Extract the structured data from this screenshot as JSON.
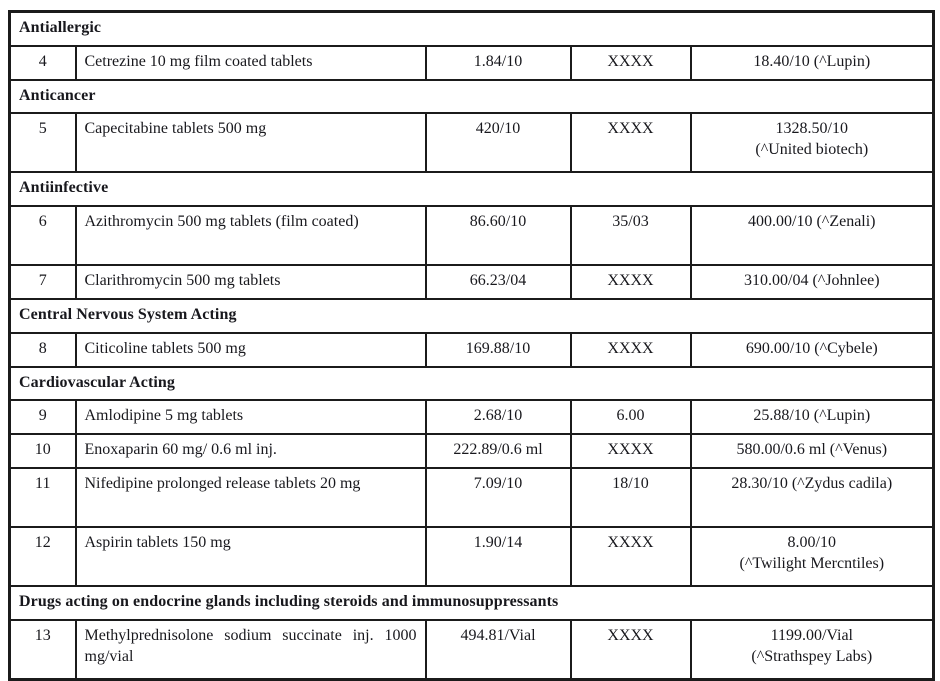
{
  "accent_colors": {
    "border": "#1b1b1b",
    "text": "#18181d",
    "background": "#ffffff"
  },
  "table": {
    "sections": [
      {
        "title": "Antiallergic",
        "rows": [
          {
            "sn": "4",
            "item": "Cetrezine 10 mg film coated tablets",
            "price_a": "1.84/10",
            "price_b": "XXXX",
            "price_c": [
              "18.40/10 (^Lupin)"
            ],
            "tall": false
          }
        ]
      },
      {
        "title": "Anticancer",
        "rows": [
          {
            "sn": "5",
            "item": "Capecitabine tablets 500 mg",
            "price_a": "420/10",
            "price_b": "XXXX",
            "price_c": [
              "1328.50/10",
              "(^United biotech)"
            ],
            "tall": true
          }
        ]
      },
      {
        "title": "Antiinfective",
        "rows": [
          {
            "sn": "6",
            "item": "Azithromycin 500 mg tablets (film coated)",
            "price_a": "86.60/10",
            "price_b": "35/03",
            "price_c": [
              "400.00/10 (^Zenali)"
            ],
            "tall": true
          },
          {
            "sn": "7",
            "item": "Clarithromycin 500 mg tablets",
            "price_a": "66.23/04",
            "price_b": "XXXX",
            "price_c": [
              "310.00/04 (^Johnlee)"
            ],
            "tall": false
          }
        ]
      },
      {
        "title": "Central Nervous System Acting",
        "rows": [
          {
            "sn": "8",
            "item": "Citicoline tablets 500 mg",
            "price_a": "169.88/10",
            "price_b": "XXXX",
            "price_c": [
              "690.00/10 (^Cybele)"
            ],
            "tall": false
          }
        ]
      },
      {
        "title": "Cardiovascular Acting",
        "rows": [
          {
            "sn": "9",
            "item": "Amlodipine 5 mg tablets",
            "price_a": "2.68/10",
            "price_b": "6.00",
            "price_c": [
              "25.88/10 (^Lupin)"
            ],
            "tall": false
          },
          {
            "sn": "10",
            "item": "Enoxaparin 60 mg/ 0.6 ml inj.",
            "price_a": "222.89/0.6 ml",
            "price_b": "XXXX",
            "price_c": [
              "580.00/0.6 ml (^Venus)"
            ],
            "tall": false
          },
          {
            "sn": "11",
            "item": "Nifedipine prolonged release tablets 20 mg",
            "price_a": "7.09/10",
            "price_b": "18/10",
            "price_c": [
              "28.30/10 (^Zydus cadila)"
            ],
            "tall": true
          },
          {
            "sn": "12",
            "item": "Aspirin tablets 150 mg",
            "price_a": "1.90/14",
            "price_b": "XXXX",
            "price_c": [
              "8.00/10",
              "(^Twilight Mercntiles)"
            ],
            "tall": true
          }
        ]
      },
      {
        "title": "Drugs acting on endocrine glands including steroids and immunosuppressants",
        "rows": [
          {
            "sn": "13",
            "item": "Methylprednisolone sodium succinate inj. 1000 mg/vial",
            "price_a": "494.81/Vial",
            "price_b": "XXXX",
            "price_c": [
              "1199.00/Vial",
              "(^Strathspey Labs)"
            ],
            "tall": true
          }
        ]
      }
    ]
  }
}
